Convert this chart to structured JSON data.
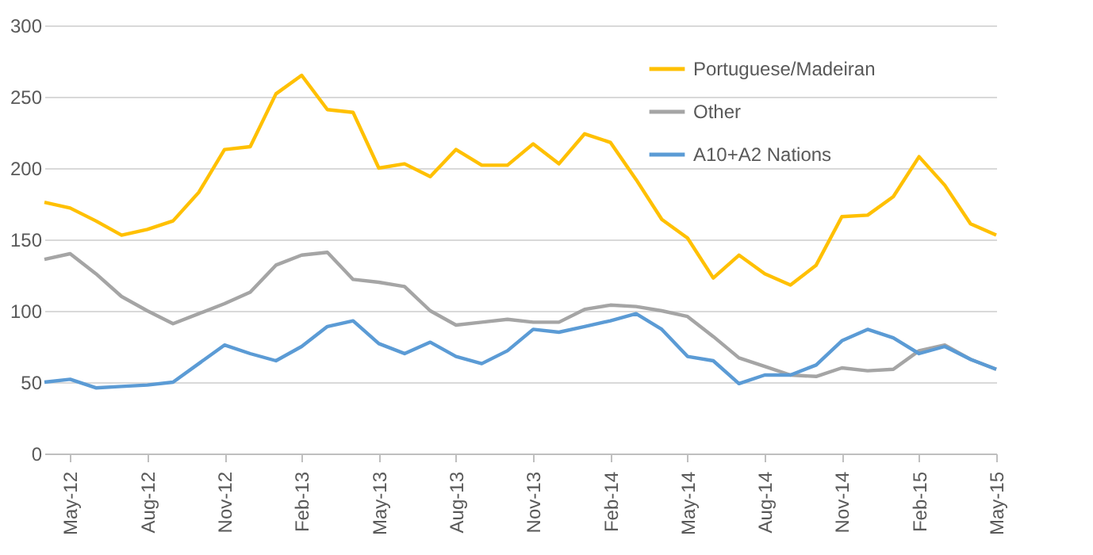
{
  "chart_data": {
    "type": "line",
    "categories": [
      null,
      "May-12",
      null,
      null,
      "Aug-12",
      null,
      null,
      "Nov-12",
      null,
      null,
      "Feb-13",
      null,
      null,
      "May-13",
      null,
      null,
      "Aug-13",
      null,
      null,
      "Nov-13",
      null,
      null,
      "Feb-14",
      null,
      null,
      "May-14",
      null,
      null,
      "Aug-14",
      null,
      null,
      "Nov-14",
      null,
      null,
      "Feb-15",
      null,
      null,
      "May-15"
    ],
    "series": [
      {
        "name": "Portuguese/Madeiran",
        "color": "#ffc000",
        "values": [
          176,
          172,
          163,
          153,
          157,
          163,
          183,
          213,
          215,
          252,
          265,
          241,
          239,
          200,
          203,
          194,
          213,
          202,
          202,
          217,
          203,
          224,
          218,
          192,
          164,
          151,
          123,
          139,
          126,
          118,
          132,
          166,
          167,
          180,
          208,
          188,
          161,
          153
        ]
      },
      {
        "name": "Other",
        "color": "#a5a5a5",
        "values": [
          136,
          140,
          126,
          110,
          100,
          91,
          98,
          105,
          113,
          132,
          139,
          141,
          122,
          120,
          117,
          100,
          90,
          92,
          94,
          92,
          92,
          101,
          104,
          103,
          100,
          96,
          82,
          67,
          61,
          55,
          54,
          60,
          58,
          59,
          72,
          76,
          66,
          59
        ]
      },
      {
        "name": "A10+A2 Nations",
        "color": "#5b9bd5",
        "values": [
          50,
          52,
          46,
          47,
          48,
          50,
          63,
          76,
          70,
          65,
          75,
          89,
          93,
          77,
          70,
          78,
          68,
          63,
          72,
          87,
          85,
          89,
          93,
          98,
          87,
          68,
          65,
          49,
          55,
          55,
          62,
          79,
          87,
          81,
          70,
          75,
          66,
          59
        ]
      }
    ],
    "ylim": [
      0,
      300
    ],
    "yticks": [
      0,
      50,
      100,
      150,
      200,
      250,
      300
    ],
    "grid": "y",
    "legend": "top right",
    "marker": "none",
    "line_style": "solid"
  }
}
